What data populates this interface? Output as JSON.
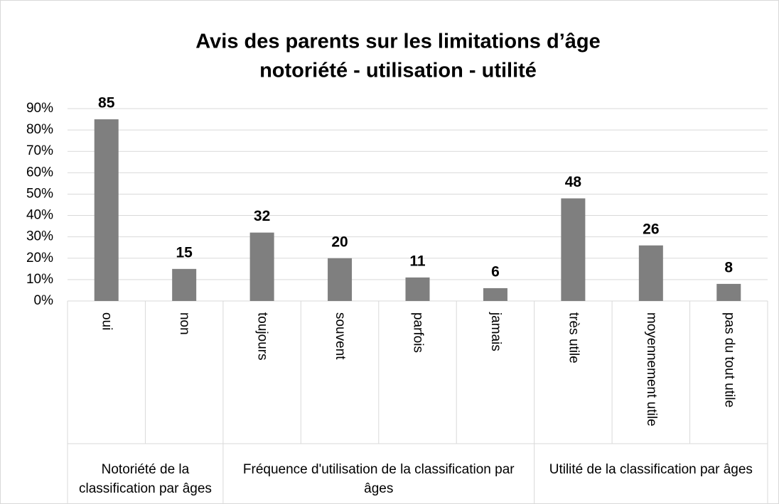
{
  "chart_data": {
    "type": "bar",
    "title": "Avis des parents sur les limitations d’âge",
    "subtitle": "notoriété - utilisation - utilité",
    "categories": [
      "oui",
      "non",
      "toujours",
      "souvent",
      "parfois",
      "jamais",
      "très utile",
      "moyennement utile",
      "pas du tout utile"
    ],
    "values": [
      85,
      15,
      32,
      20,
      11,
      6,
      48,
      26,
      8
    ],
    "groups": [
      {
        "name": "Notoriété de la classification par âges",
        "categories": [
          "oui",
          "non"
        ]
      },
      {
        "name": "Fréquence d'utilisation de la classification par âges",
        "categories": [
          "toujours",
          "souvent",
          "parfois",
          "jamais"
        ]
      },
      {
        "name": "Utilité de la classification par âges",
        "categories": [
          "très utile",
          "moyennement utile",
          "pas du tout utile"
        ]
      }
    ],
    "color": "#7f7f7f",
    "ylim": [
      0,
      90
    ],
    "yticks": [
      {
        "value": 0,
        "label": "0%"
      },
      {
        "value": 10,
        "label": "10%"
      },
      {
        "value": 20,
        "label": "20%"
      },
      {
        "value": 30,
        "label": "30%"
      },
      {
        "value": 40,
        "label": "40%"
      },
      {
        "value": 50,
        "label": "50%"
      },
      {
        "value": 60,
        "label": "60%"
      },
      {
        "value": 70,
        "label": "70%"
      },
      {
        "value": 80,
        "label": "80%"
      },
      {
        "value": 90,
        "label": "90%"
      }
    ],
    "grid": true
  }
}
